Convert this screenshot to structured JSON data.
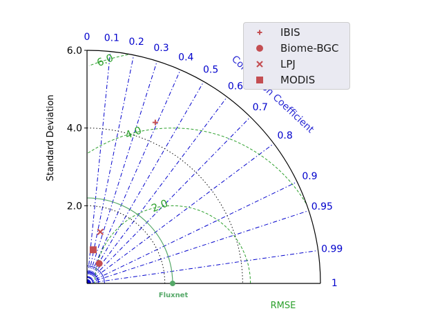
{
  "chart_data": {
    "type": "taylor-diagram",
    "title": "",
    "ylabel": "Standard Deviation",
    "corr_axis_label": "Correlation Coefficient",
    "rmse_label": "RMSE",
    "std_max": 6.0,
    "std_ticks": [
      "2.0",
      "4.0",
      "6.0"
    ],
    "corr_ticks": [
      "0",
      "0.1",
      "0.2",
      "0.3",
      "0.4",
      "0.5",
      "0.6",
      "0.7",
      "0.8",
      "0.9",
      "0.95",
      "0.99",
      "1"
    ],
    "rmse_contour_labels": [
      "2.0",
      "4.0",
      "6.0"
    ],
    "reference": {
      "name": "Fluxnet",
      "std": 2.2,
      "corr": 1.0
    },
    "series": [
      {
        "name": "IBIS",
        "marker": "plus",
        "std": 4.5,
        "corr": 0.39
      },
      {
        "name": "Biome-BGC",
        "marker": "circle",
        "std": 0.6,
        "corr": 0.52
      },
      {
        "name": "LPJ",
        "marker": "x",
        "std": 1.37,
        "corr": 0.25
      },
      {
        "name": "MODIS",
        "marker": "square",
        "std": 0.88,
        "corr": 0.18
      }
    ],
    "legend_position": "top-right",
    "colors": {
      "markers": "#c44e52",
      "reference": "#55a868",
      "rmse": "#2ca02c",
      "corr_lines": "#0000cc",
      "corr_text": "#0000cc",
      "axis": "#000000"
    }
  }
}
